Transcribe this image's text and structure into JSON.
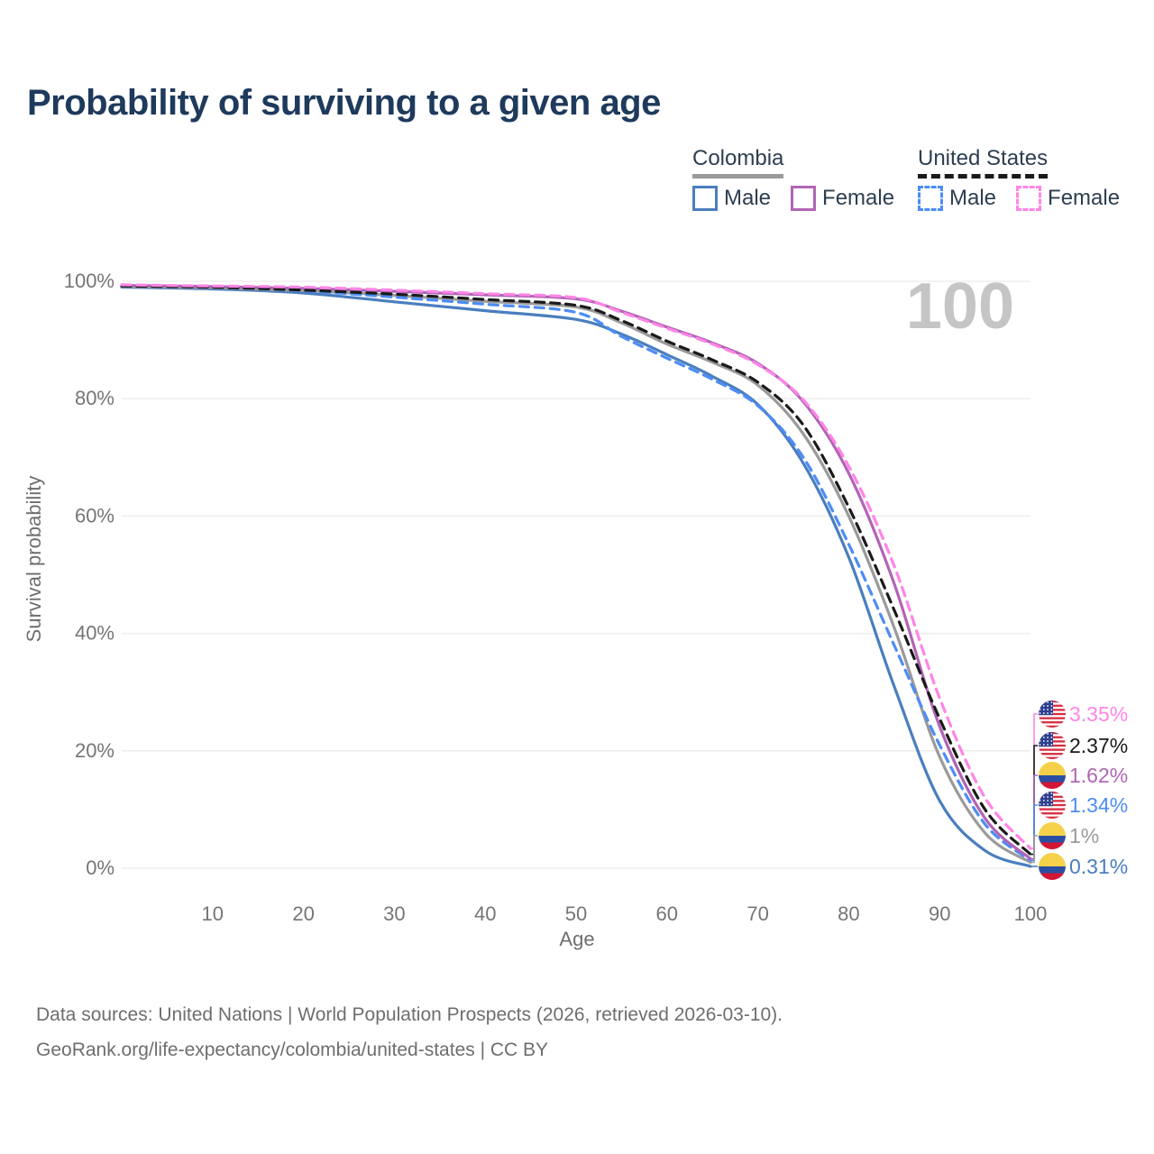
{
  "title": "Probability of surviving to a given age",
  "watermark_age": "100",
  "legend": {
    "groups": [
      {
        "country": "Colombia",
        "underline_style": "solid",
        "underline_color": "#9a9a9a",
        "items": [
          {
            "label": "Male",
            "color": "#4a7ebf",
            "line": "solid"
          },
          {
            "label": "Female",
            "color": "#b165b5",
            "line": "solid"
          }
        ]
      },
      {
        "country": "United States",
        "underline_style": "dashed",
        "underline_color": "#1a1a1a",
        "items": [
          {
            "label": "Male",
            "color": "#4d8cf5",
            "line": "dashed"
          },
          {
            "label": "Female",
            "color": "#ff85e6",
            "line": "dashed"
          }
        ]
      }
    ]
  },
  "chart_data": {
    "type": "line",
    "title": "Probability of surviving to a given age",
    "xlabel": "Age",
    "ylabel": "Survival probability",
    "xlim": [
      0,
      100
    ],
    "ylim": [
      0,
      100
    ],
    "grid": "horizontal",
    "legend_position": "top-right",
    "x_tick_labels": [
      "10",
      "20",
      "30",
      "40",
      "50",
      "60",
      "70",
      "80",
      "90",
      "100"
    ],
    "x_tick_values": [
      10,
      20,
      30,
      40,
      50,
      60,
      70,
      80,
      90,
      100
    ],
    "y_tick_labels": [
      "100%",
      "80%",
      "60%",
      "40%",
      "20%",
      "0%"
    ],
    "y_tick_values": [
      100,
      80,
      60,
      40,
      20,
      0
    ],
    "x": [
      0,
      10,
      20,
      30,
      40,
      50,
      55,
      60,
      65,
      70,
      75,
      80,
      85,
      90,
      95,
      100
    ],
    "series": [
      {
        "name": "United States Female",
        "country": "United States",
        "sex": "Female",
        "color": "#ff85e6",
        "line": "dashed",
        "flag": "us",
        "end_label": "3.35%",
        "values": [
          99.4,
          99.2,
          99.0,
          98.5,
          97.9,
          97.2,
          94.7,
          92.0,
          89.3,
          85.8,
          79.8,
          68.5,
          51.5,
          29.0,
          12.0,
          3.35
        ]
      },
      {
        "name": "United States Total",
        "country": "United States",
        "sex": "Both",
        "color": "#1a1a1a",
        "line": "dashed",
        "flag": "us",
        "end_label": "2.37%",
        "values": [
          99.2,
          99.0,
          98.5,
          97.8,
          96.9,
          95.9,
          93.3,
          89.8,
          86.6,
          82.8,
          75.5,
          61.5,
          44.0,
          25.5,
          10.0,
          2.37
        ]
      },
      {
        "name": "Colombia Female",
        "country": "Colombia",
        "sex": "Female",
        "color": "#b165b5",
        "line": "solid",
        "flag": "co",
        "end_label": "1.62%",
        "values": [
          99.3,
          99.1,
          98.8,
          98.3,
          97.7,
          97.0,
          94.9,
          92.2,
          89.5,
          86.0,
          79.5,
          67.3,
          48.5,
          24.2,
          8.5,
          1.62
        ]
      },
      {
        "name": "United States Male",
        "country": "United States",
        "sex": "Male",
        "color": "#4d8cf5",
        "line": "dashed",
        "flag": "us",
        "end_label": "1.34%",
        "values": [
          99.2,
          99.0,
          98.4,
          97.3,
          96.1,
          94.7,
          90.6,
          86.9,
          83.3,
          78.8,
          70.0,
          55.2,
          38.0,
          21.0,
          7.5,
          1.34
        ]
      },
      {
        "name": "Colombia Total",
        "country": "Colombia",
        "sex": "Both",
        "color": "#9a9a9a",
        "line": "solid",
        "flag": "co",
        "end_label": "1%",
        "values": [
          99.1,
          98.9,
          98.4,
          97.6,
          96.6,
          95.6,
          92.9,
          89.3,
          86.2,
          82.3,
          74.0,
          60.0,
          41.0,
          19.0,
          6.0,
          1.0
        ]
      },
      {
        "name": "Colombia Male",
        "country": "Colombia",
        "sex": "Male",
        "color": "#4a7ebf",
        "line": "solid",
        "flag": "co",
        "end_label": "0.31%",
        "values": [
          99.0,
          98.7,
          98.0,
          96.5,
          95.0,
          93.5,
          91.0,
          87.5,
          83.8,
          79.0,
          69.0,
          53.0,
          31.0,
          11.5,
          3.0,
          0.31
        ]
      }
    ],
    "flag_colors": {
      "us": {
        "canton": "#2e3f8f",
        "stripe": "#d62d3f",
        "field": "#ffffff",
        "star": "#ffffff"
      },
      "co": {
        "top": "#f5d14a",
        "middle": "#2a4fa2",
        "bottom": "#d31634"
      }
    }
  },
  "style": {
    "grid_color": "#ededed",
    "tick_color": "#757575",
    "axis_label_color": "#6e6e6e",
    "watermark_color": "#c5c5c5",
    "title_color": "#1e3a5c"
  },
  "footer": {
    "line1": "Data sources: United Nations | World Population Prospects (2026, retrieved 2026-03-10).",
    "line2": "GeoRank.org/life-expectancy/colombia/united-states | CC BY"
  }
}
